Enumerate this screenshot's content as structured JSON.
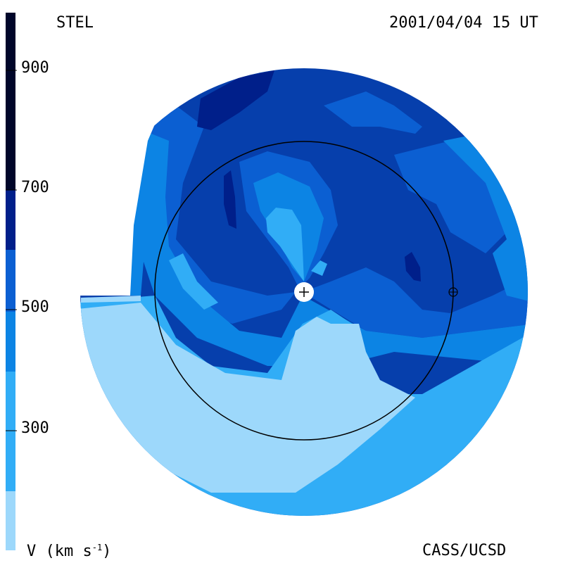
{
  "header": {
    "instrument": "STEL",
    "timestamp": "2001/04/04 15 UT"
  },
  "footer": {
    "unit_label_prefix": "V (km s",
    "unit_label_exp": "-1",
    "unit_label_suffix": ")",
    "credit": "CASS/UCSD"
  },
  "colorbar": {
    "ticks": [
      "900",
      "700",
      "500",
      "300"
    ],
    "tick_values": [
      900,
      700,
      500,
      300
    ],
    "range": [
      200,
      1000
    ],
    "levels": [
      {
        "min": 200,
        "max": 300,
        "color": "#9dd8fb"
      },
      {
        "min": 300,
        "max": 400,
        "color": "#31adf6"
      },
      {
        "min": 400,
        "max": 500,
        "color": "#0c84e4"
      },
      {
        "min": 500,
        "max": 600,
        "color": "#0b5fd2"
      },
      {
        "min": 600,
        "max": 700,
        "color": "#063fac"
      },
      {
        "min": 700,
        "max": 800,
        "color": "#001f8a"
      },
      {
        "min": 800,
        "max": 1000,
        "color": "#00062a"
      }
    ]
  },
  "markers": {
    "sun_symbol": "+",
    "earth_symbol": "⊕"
  }
}
